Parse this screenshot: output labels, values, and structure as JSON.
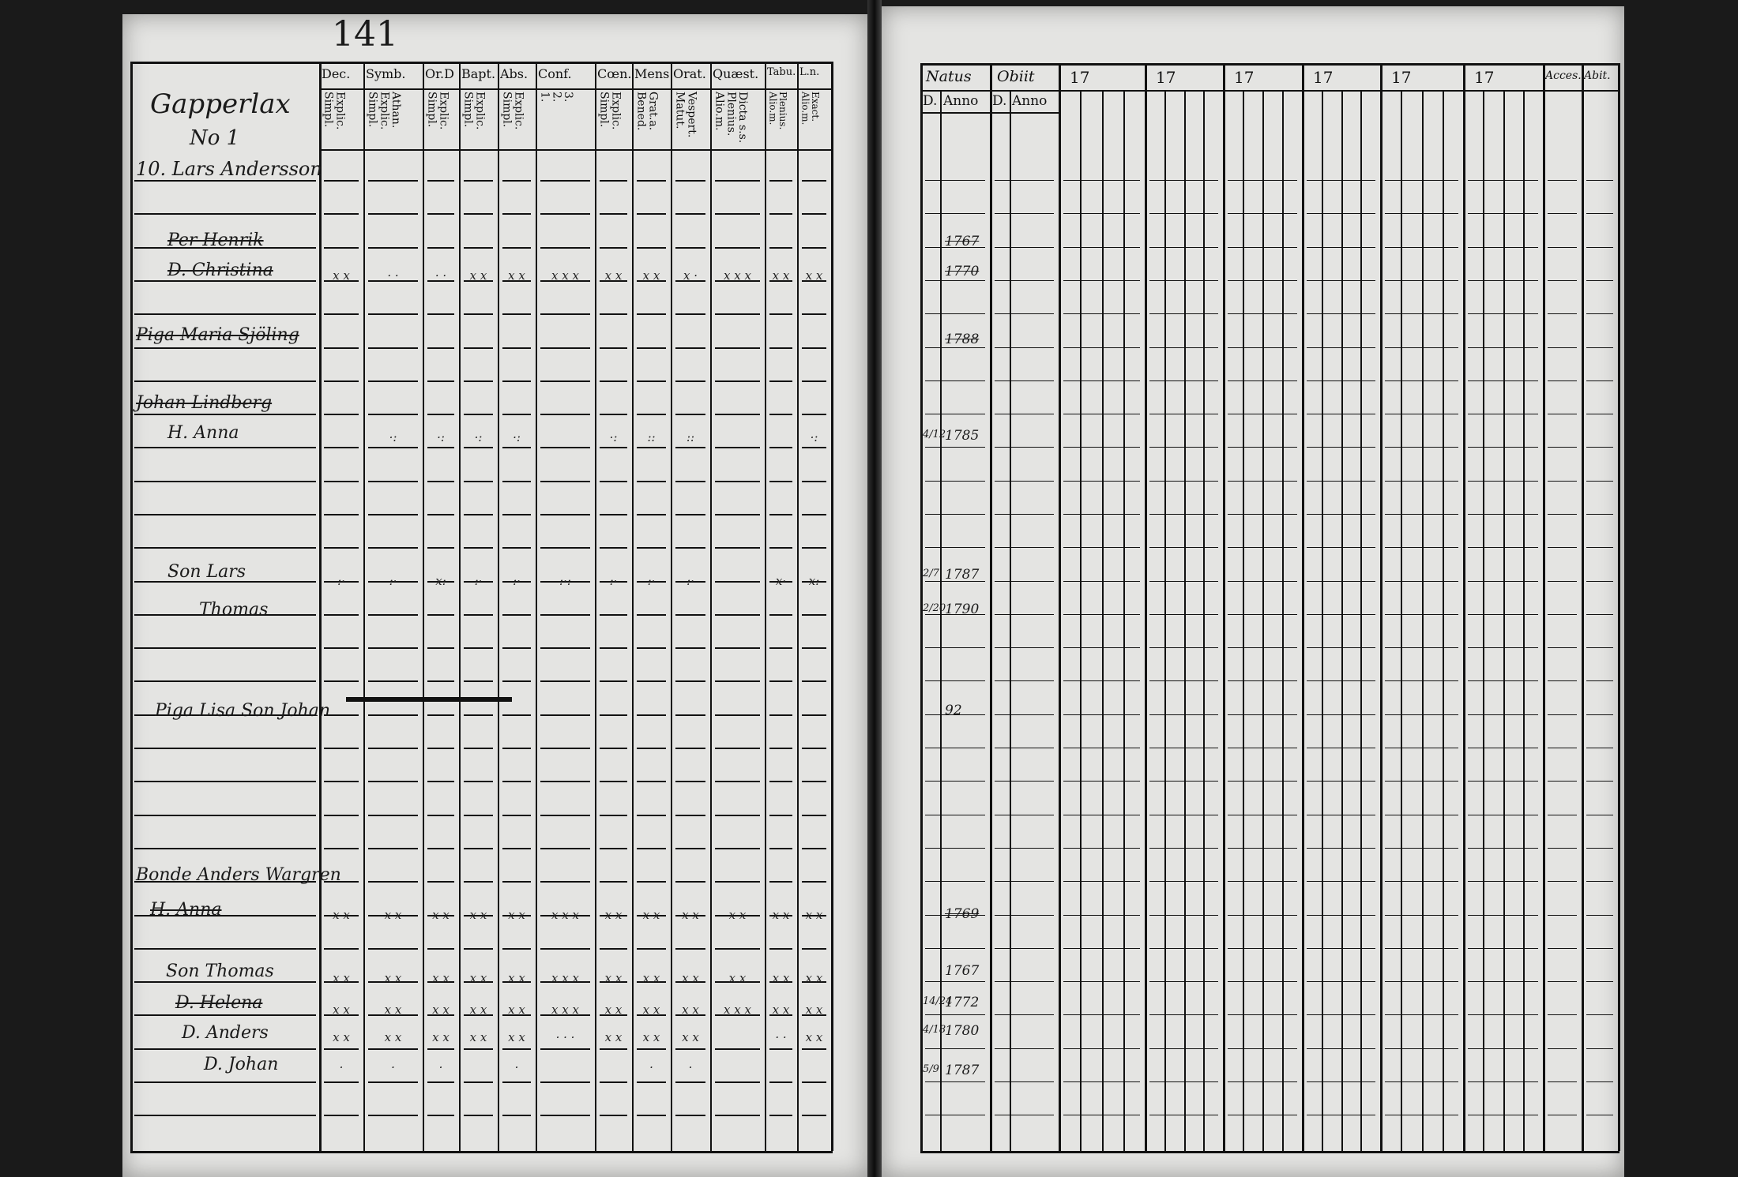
{
  "page_number": "141",
  "left_page": {
    "headers": [
      {
        "top": "Dec.",
        "sub": "Explic.\nSimpl."
      },
      {
        "top": "Symb.",
        "sub": "Athan.\nExplic.\nSimpl."
      },
      {
        "top": "Or.D",
        "sub": "Explic.\nSimpl."
      },
      {
        "top": "Bapt.",
        "sub": "Explic.\nSimpl."
      },
      {
        "top": "Abs.",
        "sub": "Explic.\nSimpl."
      },
      {
        "top": "Conf.",
        "sub": "3.\n2.\n1."
      },
      {
        "top": "Cœn.D.",
        "sub": "Explic.\nSimpl."
      },
      {
        "top": "Mens.",
        "sub": "Grat.a.\nBened."
      },
      {
        "top": "Orat.",
        "sub": "Vespert.\nMatut."
      },
      {
        "top": "Quæst.",
        "sub": "Dicta s.s.\nPlenius.\nAlio.m."
      },
      {
        "top": "Tabu.",
        "sub": "Plenius.\nAlio.m."
      },
      {
        "top": "L.n.",
        "sub": "Exact.\nAlio.m."
      }
    ],
    "place": "Gapperlax",
    "place_no": "No 1",
    "household": "10. Lars Andersson",
    "entries": [
      {
        "name": "Per Henrik",
        "struck": true
      },
      {
        "name": "D. Christina",
        "struck": true
      },
      {
        "name": "Piga Maria Sjöling",
        "struck": true
      },
      {
        "name": "Johan Lindberg",
        "struck": true
      },
      {
        "name": "H. Anna",
        "struck": false
      },
      {
        "name": "Son Lars",
        "struck": false
      },
      {
        "name": "Thomas",
        "struck": false
      },
      {
        "name": "Piga Lisa Son Johan",
        "struck": false
      },
      {
        "name": "Bonde Anders Wargren",
        "struck": false
      },
      {
        "name": "H. Anna",
        "struck": true
      },
      {
        "name": "Son Thomas",
        "struck": false
      },
      {
        "name": "D. Helena",
        "struck": true
      },
      {
        "name": "D. Anders",
        "struck": false
      },
      {
        "name": "D. Johan",
        "struck": false
      }
    ],
    "mark_rows": [
      [
        "x x",
        "· ·",
        "· ·",
        "x x",
        "x x",
        "x x x",
        "x x",
        "x x",
        "x ·",
        "x x x",
        "x x",
        "x x"
      ],
      [
        "",
        "·:",
        "·:",
        "·:",
        "·:",
        "",
        "·:",
        "::",
        "::",
        "",
        "",
        "·:"
      ],
      [
        ":·",
        ":·",
        "x:",
        ":·",
        ":·",
        ":·:",
        ":·",
        ":·",
        ":·",
        "",
        "x·",
        "x:"
      ],
      [
        "x x",
        "x x",
        "x x",
        "x x",
        "x x",
        "x x x",
        "x x",
        "x x",
        "x x",
        "x x",
        "x x",
        "x x"
      ],
      [
        "x x",
        "x x",
        "x x",
        "x x",
        "x x",
        "x x x",
        "x x",
        "x x",
        "x x",
        "x x",
        "x x",
        "x x"
      ],
      [
        "x x",
        "x x",
        "x x",
        "x x",
        "x x",
        "x x x",
        "x x",
        "x x",
        "x x",
        "x x x",
        "x x",
        "x x"
      ],
      [
        "x x",
        "x x",
        "x x",
        "x x",
        "x x",
        "· · ·",
        "x x",
        "x x",
        "x x",
        "",
        "· ·",
        "x x"
      ],
      [
        "·",
        "·",
        "·",
        "",
        "·",
        "",
        "",
        "·",
        "·",
        "",
        "",
        ""
      ]
    ]
  },
  "right_page": {
    "headers": {
      "natus": "Natus",
      "obiit": "Obiit",
      "day": "D.",
      "anno": "Anno",
      "years": [
        "17",
        "17",
        "17",
        "17",
        "17",
        "17"
      ],
      "acces": "Acces.",
      "abit": "Abit."
    },
    "births": [
      {
        "day": "",
        "year": "1767"
      },
      {
        "day": "",
        "year": "1770"
      },
      {
        "day": "",
        "year": "1788"
      },
      {
        "day": "4/12",
        "year": "1785"
      },
      {
        "day": "2/7",
        "year": "1787"
      },
      {
        "day": "2/20",
        "year": "1790"
      },
      {
        "day": "",
        "year": "92"
      },
      {
        "day": "",
        "year": "1769"
      },
      {
        "day": "",
        "year": "1767"
      },
      {
        "day": "14/24",
        "year": "1772"
      },
      {
        "day": "4/18",
        "year": "1780"
      },
      {
        "day": "5/9",
        "year": "1787"
      }
    ]
  }
}
